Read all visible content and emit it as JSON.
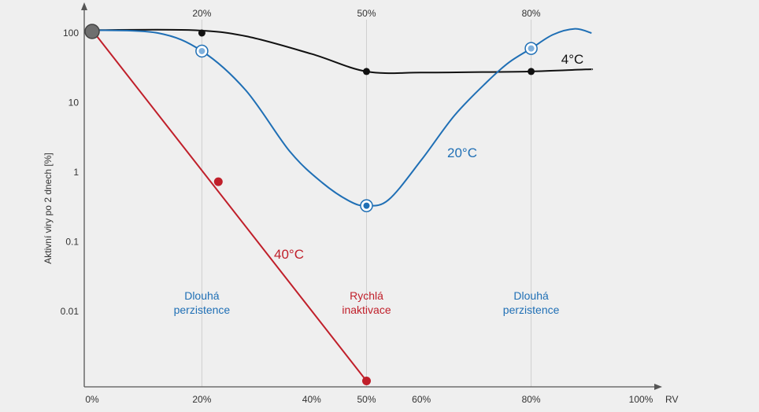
{
  "chart_data": {
    "type": "line",
    "title": "",
    "xlabel": "RV",
    "ylabel": "Aktivní viry po 2 dnech [%]",
    "x_ticks": [
      "0%",
      "20%",
      "40%",
      "50%",
      "60%",
      "80%",
      "100%"
    ],
    "x_tick_values": [
      0,
      20,
      40,
      50,
      60,
      80,
      100
    ],
    "y_ticks": [
      "100",
      "10",
      "1",
      "0.1",
      "0.01"
    ],
    "y_tick_values": [
      100,
      10,
      1,
      0.1,
      0.01
    ],
    "y_scale": "log",
    "xlim": [
      0,
      100
    ],
    "ylim": [
      0.001,
      110
    ],
    "top_labels": [
      {
        "x": 20,
        "label": "20%"
      },
      {
        "x": 50,
        "label": "50%"
      },
      {
        "x": 80,
        "label": "80%"
      }
    ],
    "zones": [
      {
        "x": 20,
        "line1": "Dlouhá",
        "line2": "perzistence",
        "color": "#1f6fb5"
      },
      {
        "x": 50,
        "line1": "Rychlá",
        "line2": "inaktivace",
        "color": "#c01f2a"
      },
      {
        "x": 80,
        "line1": "Dlouhá",
        "line2": "perzistence",
        "color": "#1f6fb5"
      }
    ],
    "start_point": {
      "x": 0,
      "y": 100
    },
    "series": [
      {
        "name": "4°C",
        "color": "#111111",
        "curve_x": [
          0,
          18,
          28,
          40,
          50,
          60,
          72,
          80,
          90,
          91
        ],
        "curve_y": [
          110,
          110,
          90,
          50,
          28,
          27,
          27.5,
          28,
          30,
          30
        ],
        "points": [
          {
            "x": 20,
            "y": 100
          },
          {
            "x": 50,
            "y": 28
          },
          {
            "x": 80,
            "y": 28
          }
        ],
        "marker": "dot"
      },
      {
        "name": "20°C",
        "color": "#1f6fb5",
        "curve_x": [
          0,
          12,
          20,
          28,
          36,
          42,
          47,
          50,
          54,
          60,
          66,
          72,
          76,
          80,
          84,
          88,
          91
        ],
        "curve_y": [
          110,
          100,
          55,
          15,
          2,
          0.7,
          0.38,
          0.33,
          0.4,
          1.5,
          6.5,
          20,
          38,
          60,
          95,
          115,
          100
        ],
        "points": [
          {
            "x": 20,
            "y": 55
          },
          {
            "x": 50,
            "y": 0.33
          },
          {
            "x": 80,
            "y": 60
          }
        ],
        "marker": "ring"
      },
      {
        "name": "40°C",
        "color": "#c01f2a",
        "curve_x": [
          0,
          50
        ],
        "curve_y": [
          110,
          0.001
        ],
        "points": [
          {
            "x": 23,
            "y": 0.73
          },
          {
            "x": 50,
            "y": 0.001
          }
        ],
        "marker": "dot"
      }
    ]
  }
}
